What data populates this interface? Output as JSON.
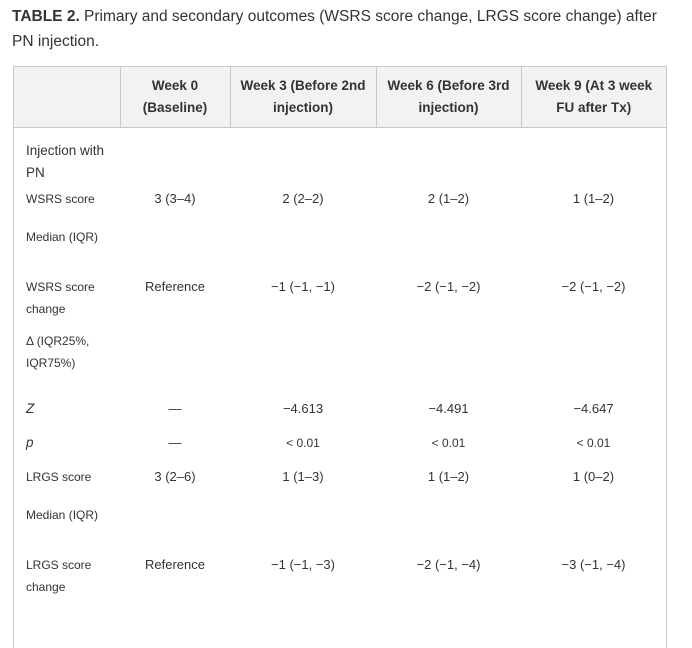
{
  "caption": {
    "label": "TABLE 2.",
    "text": " Primary and secondary outcomes (WSRS score change, LRGS score change) after PN injection."
  },
  "table": {
    "headers": [
      "",
      "Week 0 (Baseline)",
      "Week 3 (Before 2nd injection)",
      "Week 6 (Before 3rd injection)",
      "Week 9 (At 3 week FU after Tx)"
    ],
    "group_label": "Injection with PN",
    "rows": {
      "wsrs": {
        "label": "WSRS score",
        "values": [
          "3 (3–4)",
          "2 (2–2)",
          "2 (1–2)",
          "1 (1–2)"
        ]
      },
      "wsrs_sub": {
        "label": "Median (IQR)"
      },
      "wsrs_change": {
        "label": "WSRS score change",
        "values": [
          "Reference",
          "−1 (−1, −1)",
          "−2 (−1, −2)",
          "−2 (−1, −2)"
        ]
      },
      "wsrs_change_sub": {
        "label": "Δ (IQR25%, IQR75%)"
      },
      "z": {
        "label": "Z",
        "values": [
          "—",
          "−4.613",
          "−4.491",
          "−4.647"
        ]
      },
      "p": {
        "label": "p",
        "values": [
          "—",
          "< 0.01",
          "< 0.01",
          "< 0.01"
        ]
      },
      "lrgs": {
        "label": "LRGS score",
        "values": [
          "3 (2–6)",
          "1 (1–3)",
          "1 (1–2)",
          "1 (0–2)"
        ]
      },
      "lrgs_sub": {
        "label": "Median (IQR)"
      },
      "lrgs_change": {
        "label": "LRGS score change",
        "values": [
          "Reference",
          "−1 (−1, −3)",
          "−2 (−1, −4)",
          "−3 (−1, −4)"
        ]
      }
    }
  }
}
